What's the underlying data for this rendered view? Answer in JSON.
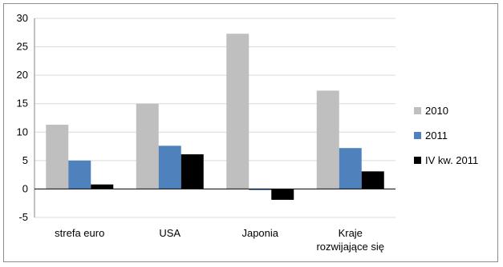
{
  "chart_data": {
    "type": "bar",
    "title": "",
    "xlabel": "",
    "ylabel": "",
    "categories": [
      [
        "strefa euro"
      ],
      [
        "USA"
      ],
      [
        "Japonia"
      ],
      [
        "Kraje",
        "rozwijające się"
      ]
    ],
    "series": [
      {
        "name": "2010",
        "color": "#bfbfbf",
        "values": [
          11.3,
          15.0,
          27.3,
          17.3
        ]
      },
      {
        "name": "2011",
        "color": "#4f81bd",
        "values": [
          5.0,
          7.6,
          -0.2,
          7.2
        ]
      },
      {
        "name": "IV kw. 2011",
        "color": "#000000",
        "values": [
          0.8,
          6.1,
          -1.9,
          3.1
        ]
      }
    ],
    "ylim": [
      -5,
      30
    ],
    "yticks": [
      -5,
      0,
      5,
      10,
      15,
      20,
      25,
      30
    ],
    "grid": true,
    "legend_position": "right"
  }
}
